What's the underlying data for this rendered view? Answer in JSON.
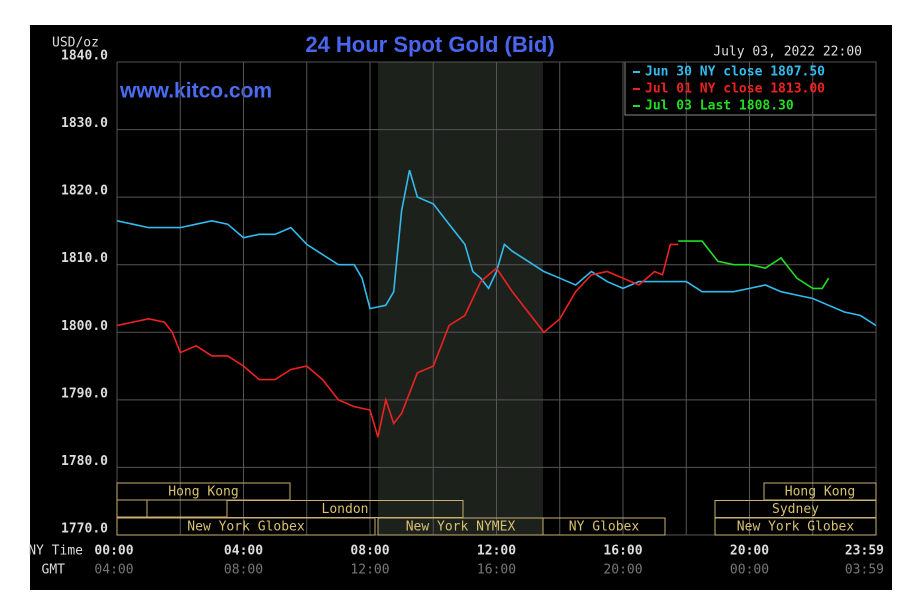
{
  "chart_data": {
    "type": "line",
    "title": "24 Hour Spot Gold (Bid)",
    "y_unit": "USD/oz",
    "timestamp": "July 03, 2022 22:00",
    "watermark": "www.kitco.com",
    "x_row_labels": [
      "NY Time",
      "GMT"
    ],
    "xlim": [
      0,
      24
    ],
    "ylim": [
      1770,
      1840
    ],
    "yticks": [
      {
        "value": 1770,
        "label": "1770.0"
      },
      {
        "value": 1780,
        "label": "1780.0"
      },
      {
        "value": 1790,
        "label": "1790.0"
      },
      {
        "value": 1800,
        "label": "1800.0"
      },
      {
        "value": 1810,
        "label": "1810.0"
      },
      {
        "value": 1820,
        "label": "1820.0"
      },
      {
        "value": 1830,
        "label": "1830.0"
      },
      {
        "value": 1840,
        "label": "1840.0"
      }
    ],
    "xticks": [
      {
        "value": 0,
        "label": "00:00"
      },
      {
        "value": 4,
        "label": "04:00"
      },
      {
        "value": 8,
        "label": "08:00"
      },
      {
        "value": 12,
        "label": "12:00"
      },
      {
        "value": 16,
        "label": "16:00"
      },
      {
        "value": 20,
        "label": "20:00"
      },
      {
        "value": 24,
        "label": "23:59"
      }
    ],
    "gmt_labels": [
      "04:00",
      "08:00",
      "12:00",
      "16:00",
      "20:00",
      "00:00",
      "03:59"
    ],
    "xminor": [
      2,
      6,
      10,
      14,
      18,
      22
    ],
    "grid": true,
    "sessions": [
      "Hong Kong",
      "London",
      "New York Globex",
      "New York NYMEX",
      "NY Globex",
      "Hong Kong",
      "Sydney",
      "New York Globex"
    ],
    "series": [
      {
        "name": "Jun 30 NY close 1807.50",
        "color": "#33bbee",
        "x": [
          0,
          0.5,
          1,
          1.5,
          2,
          2.5,
          3,
          3.5,
          4,
          4.5,
          5,
          5.5,
          6,
          6.5,
          7,
          7.5,
          7.75,
          8,
          8.5,
          8.75,
          9,
          9.25,
          9.5,
          10,
          10.5,
          11,
          11.25,
          11.5,
          11.75,
          12,
          12.25,
          12.5,
          13,
          13.5,
          14,
          14.5,
          15,
          15.5,
          16,
          16.5,
          17,
          18,
          18.5,
          19,
          19.5,
          20,
          20.5,
          21,
          21.5,
          22,
          22.5,
          23,
          23.5,
          24
        ],
        "values": [
          1816.5,
          1816,
          1815.5,
          1815.5,
          1815.5,
          1816,
          1816.5,
          1816,
          1814,
          1814.5,
          1814.5,
          1815.5,
          1813,
          1811.5,
          1810,
          1810,
          1808,
          1803.5,
          1804,
          1806,
          1818,
          1824,
          1820,
          1819,
          1816,
          1813,
          1809,
          1808,
          1806.5,
          1809,
          1813,
          1812,
          1810.5,
          1809,
          1808,
          1807,
          1809,
          1807.5,
          1806.5,
          1807.5,
          1807.5,
          1807.5,
          1806,
          1806,
          1806,
          1806.5,
          1807,
          1806,
          1805.5,
          1805,
          1804,
          1803,
          1802.5,
          1801
        ]
      },
      {
        "name": "Jul 01 NY close 1813.00",
        "color": "#ee2222",
        "x": [
          0,
          0.5,
          1,
          1.5,
          1.75,
          2,
          2.5,
          3,
          3.5,
          4,
          4.5,
          5,
          5.5,
          6,
          6.5,
          7,
          7.5,
          8,
          8.25,
          8.5,
          8.75,
          9,
          9.5,
          10,
          10.5,
          11,
          11.5,
          12,
          12.5,
          13,
          13.5,
          14,
          14.5,
          15,
          15.5,
          16,
          16.5,
          17,
          17.25,
          17.5,
          17.75
        ],
        "values": [
          1801,
          1801.5,
          1802,
          1801.5,
          1800,
          1797,
          1798,
          1796.5,
          1796.5,
          1795,
          1793,
          1793,
          1794.5,
          1795,
          1793,
          1790,
          1789,
          1788.5,
          1784.5,
          1790,
          1786.5,
          1788,
          1794,
          1795,
          1801,
          1802.5,
          1807.5,
          1809.5,
          1806,
          1803,
          1800,
          1802,
          1806,
          1808.5,
          1809,
          1808,
          1807,
          1809,
          1808.5,
          1813,
          1813
        ]
      },
      {
        "name": "Jul 03 Last 1808.30",
        "color": "#22dd22",
        "x": [
          17.75,
          18.5,
          19,
          19.5,
          20,
          20.5,
          21,
          21.5,
          22,
          22.3,
          22.5
        ],
        "values": [
          1813.5,
          1813.5,
          1810.5,
          1810,
          1810,
          1809.5,
          1811,
          1808,
          1806.5,
          1806.5,
          1808
        ]
      }
    ]
  }
}
